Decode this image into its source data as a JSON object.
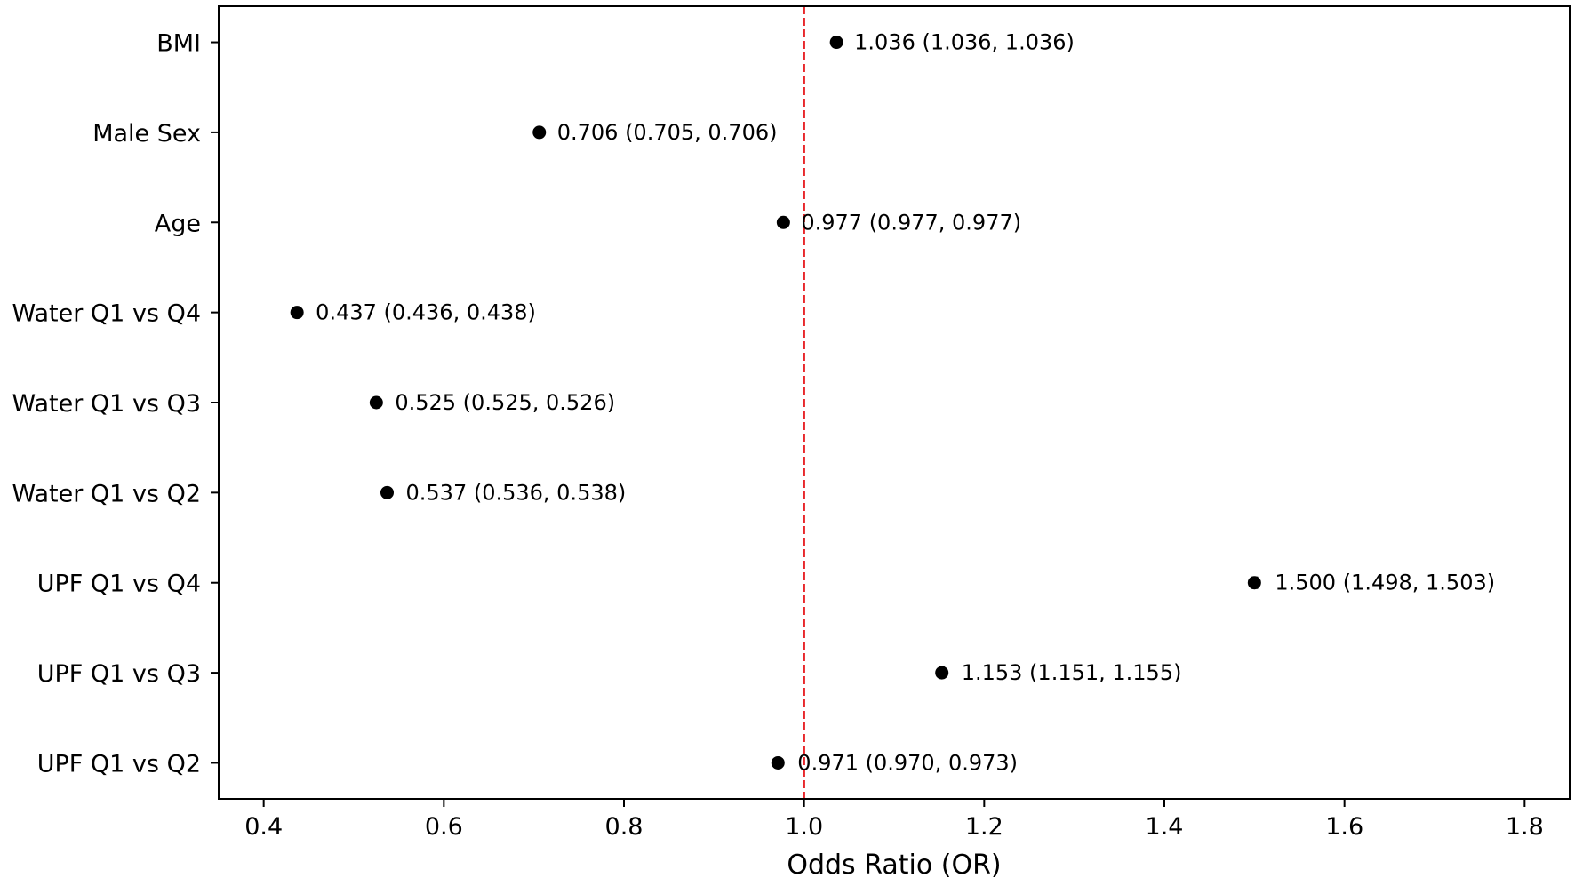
{
  "chart_data": {
    "type": "scatter",
    "subtype": "forest-plot",
    "title": "",
    "xlabel": "Odds Ratio (OR)",
    "ylabel": "",
    "xlim": [
      0.35,
      1.85
    ],
    "xticks": [
      0.4,
      0.6,
      0.8,
      1.0,
      1.2,
      1.4,
      1.6,
      1.8
    ],
    "xtick_labels": [
      "0.4",
      "0.6",
      "0.8",
      "1.0",
      "1.2",
      "1.4",
      "1.6",
      "1.8"
    ],
    "reference_line": {
      "x": 1.0,
      "color": "#e8272b",
      "style": "dashed"
    },
    "grid": false,
    "point_color": "#000000",
    "rows": [
      {
        "label": "BMI",
        "or": 1.036,
        "lo": 1.036,
        "hi": 1.036,
        "annotation": "1.036 (1.036, 1.036)"
      },
      {
        "label": "Male Sex",
        "or": 0.706,
        "lo": 0.705,
        "hi": 0.706,
        "annotation": "0.706 (0.705, 0.706)"
      },
      {
        "label": "Age",
        "or": 0.977,
        "lo": 0.977,
        "hi": 0.977,
        "annotation": "0.977 (0.977, 0.977)"
      },
      {
        "label": "Water Q1 vs Q4",
        "or": 0.437,
        "lo": 0.436,
        "hi": 0.438,
        "annotation": "0.437 (0.436, 0.438)"
      },
      {
        "label": "Water Q1 vs Q3",
        "or": 0.525,
        "lo": 0.525,
        "hi": 0.526,
        "annotation": "0.525 (0.525, 0.526)"
      },
      {
        "label": "Water Q1 vs Q2",
        "or": 0.537,
        "lo": 0.536,
        "hi": 0.538,
        "annotation": "0.537 (0.536, 0.538)"
      },
      {
        "label": "UPF Q1 vs Q4",
        "or": 1.5,
        "lo": 1.498,
        "hi": 1.503,
        "annotation": "1.500 (1.498, 1.503)"
      },
      {
        "label": "UPF Q1 vs Q3",
        "or": 1.153,
        "lo": 1.151,
        "hi": 1.155,
        "annotation": "1.153 (1.151, 1.155)"
      },
      {
        "label": "UPF Q1 vs Q2",
        "or": 0.971,
        "lo": 0.97,
        "hi": 0.973,
        "annotation": "0.971 (0.970, 0.973)"
      }
    ]
  }
}
